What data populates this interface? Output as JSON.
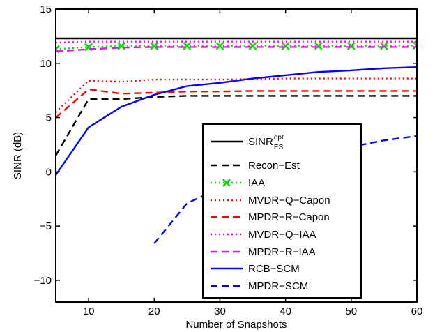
{
  "chart_data": {
    "type": "line",
    "title": "",
    "xlabel": "Number of Snapshots",
    "ylabel": "SINR (dB)",
    "xlim": [
      5,
      60
    ],
    "ylim": [
      -12,
      15
    ],
    "xticks": [
      10,
      20,
      30,
      40,
      50,
      60
    ],
    "yticks": [
      -10,
      -5,
      0,
      5,
      10,
      15
    ],
    "grid": false,
    "legend_position": "bottom-right",
    "series": [
      {
        "name": "SINR",
        "name_sup": "opt",
        "name_sub": "ES",
        "color": "#000000",
        "style": "solid",
        "marker": "none",
        "x": [
          5,
          60
        ],
        "y": [
          12.3,
          12.3
        ]
      },
      {
        "name": "Recon−Est",
        "color": "#000000",
        "style": "dashed",
        "marker": "none",
        "x": [
          5,
          10,
          15,
          20,
          25,
          30,
          35,
          40,
          45,
          50,
          55,
          60
        ],
        "y": [
          1.5,
          6.7,
          6.7,
          6.9,
          7.0,
          7.0,
          7.0,
          7.0,
          7.0,
          7.0,
          7.0,
          7.0
        ]
      },
      {
        "name": "IAA",
        "color": "#00dd00",
        "style": "dotted",
        "marker": "x",
        "x": [
          5,
          10,
          15,
          20,
          25,
          30,
          35,
          40,
          45,
          50,
          55,
          60
        ],
        "y": [
          11.3,
          11.5,
          11.6,
          11.6,
          11.6,
          11.6,
          11.6,
          11.6,
          11.6,
          11.6,
          11.6,
          11.65
        ]
      },
      {
        "name": "MVDR−Q−Capon",
        "color": "#ff0000",
        "style": "dotted",
        "marker": "none",
        "x": [
          5,
          10,
          15,
          20,
          25,
          30,
          35,
          40,
          45,
          50,
          55,
          60
        ],
        "y": [
          5.5,
          8.4,
          8.3,
          8.5,
          8.5,
          8.5,
          8.55,
          8.6,
          8.6,
          8.6,
          8.6,
          8.6
        ]
      },
      {
        "name": "MPDR−R−Capon",
        "color": "#ff0000",
        "style": "dashed",
        "marker": "none",
        "x": [
          5,
          10,
          15,
          20,
          25,
          30,
          35,
          40,
          45,
          50,
          55,
          60
        ],
        "y": [
          5.0,
          7.6,
          7.2,
          7.3,
          7.4,
          7.4,
          7.45,
          7.45,
          7.45,
          7.45,
          7.45,
          7.45
        ]
      },
      {
        "name": "MVDR−Q−IAA",
        "color": "#ff00ff",
        "style": "dotted",
        "marker": "none",
        "x": [
          5,
          10,
          15,
          20,
          25,
          30,
          35,
          40,
          45,
          50,
          55,
          60
        ],
        "y": [
          11.9,
          12.0,
          12.0,
          12.0,
          12.0,
          12.0,
          12.0,
          12.0,
          12.0,
          12.0,
          12.0,
          12.0
        ]
      },
      {
        "name": "MPDR−R−IAA",
        "color": "#ff00ff",
        "style": "dashed",
        "marker": "none",
        "x": [
          5,
          10,
          15,
          20,
          25,
          30,
          35,
          40,
          45,
          50,
          55,
          60
        ],
        "y": [
          11.1,
          11.3,
          11.45,
          11.5,
          11.5,
          11.5,
          11.5,
          11.5,
          11.5,
          11.5,
          11.5,
          11.5
        ]
      },
      {
        "name": "RCB−SCM",
        "color": "#0000ff",
        "style": "solid",
        "marker": "none",
        "x": [
          5,
          10,
          15,
          20,
          25,
          30,
          35,
          40,
          45,
          50,
          55,
          60
        ],
        "y": [
          -0.3,
          4.1,
          6.0,
          7.1,
          7.9,
          8.2,
          8.6,
          8.9,
          9.2,
          9.35,
          9.55,
          9.65
        ]
      },
      {
        "name": "MPDR−SCM",
        "color": "#0000ff",
        "style": "dashed",
        "marker": "none",
        "x": [
          20,
          25,
          30,
          35,
          40,
          45,
          50,
          55,
          60
        ],
        "y": [
          -6.6,
          -2.9,
          -1.5,
          -0.3,
          0.8,
          1.6,
          2.3,
          2.9,
          3.3
        ]
      }
    ]
  }
}
